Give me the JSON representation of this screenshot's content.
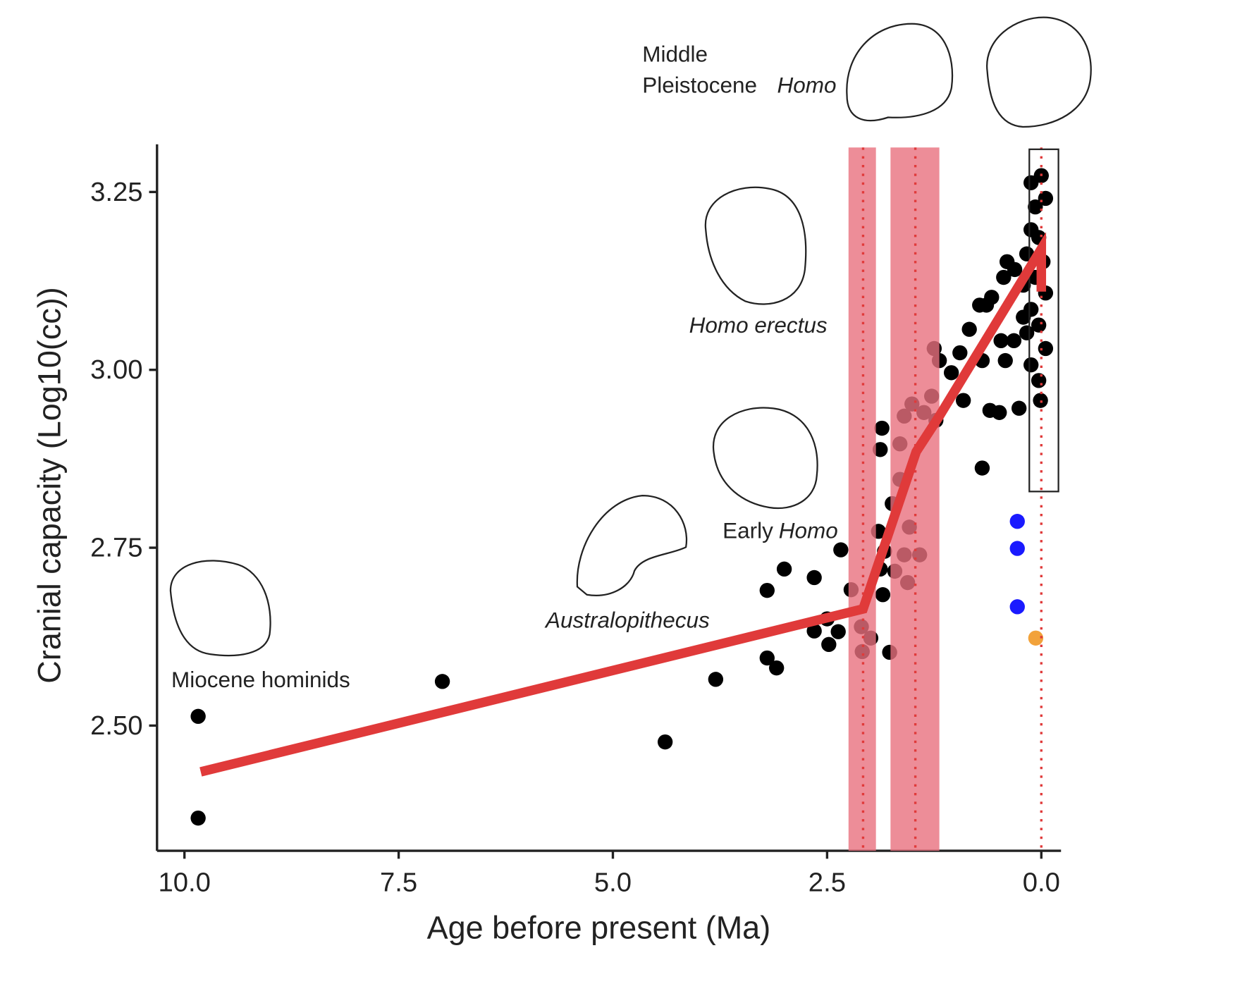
{
  "chart_data": {
    "type": "scatter",
    "x_label": "Age before present (Ma)",
    "y_label": "Cranial capacity (Log10(cc))",
    "xlim": [
      10.32,
      -0.23
    ],
    "ylim": [
      2.324,
      3.317
    ],
    "xticks": [
      {
        "value": 10,
        "label": "10.0"
      },
      7.5,
      {
        "value": 5,
        "label": "5.0"
      },
      2.5,
      {
        "value": 0,
        "label": "0.0"
      }
    ],
    "yticks": [
      {
        "value": 2.5,
        "label": "2.50"
      },
      2.75,
      {
        "value": 3,
        "label": "3.00"
      },
      3.25
    ],
    "annotations": [
      "Miocene hominids",
      "Australopithecus",
      "Early",
      "Homo",
      "Homo erectus",
      "Middle",
      "Pleistocene",
      "Homo"
    ],
    "series": [
      {
        "color": "#000000",
        "x": [
          9.84,
          9.84,
          6.99,
          4.39,
          3.8,
          3.2,
          3.0,
          3.2,
          3.09,
          2.65,
          2.34,
          2.65,
          2.5,
          2.48,
          2.37,
          2.22,
          2.09,
          2.1,
          1.99,
          1.86,
          1.88,
          1.77,
          1.85,
          1.88,
          1.83,
          1.9,
          1.74,
          1.65,
          1.71,
          1.6,
          1.56,
          1.54,
          1.42,
          1.65,
          1.6,
          1.51,
          1.37,
          1.28,
          1.25,
          1.19,
          1.23,
          1.05,
          0.95,
          0.91,
          0.84,
          0.72,
          0.69,
          0.69,
          0.58,
          0.6,
          0.49,
          0.42,
          0.47,
          0.4,
          0.26,
          0.44,
          0.64,
          0.12,
          0.0,
          0.07,
          -0.05,
          0.12,
          0.03,
          0.17,
          -0.02,
          0.07,
          0.21,
          -0.05,
          0.12,
          0.03,
          0.17,
          -0.05,
          0.12,
          0.03,
          0.01,
          0.21,
          0.31,
          0.32
        ],
        "y": [
          2.513,
          2.37,
          2.562,
          2.477,
          2.565,
          2.69,
          2.72,
          2.595,
          2.581,
          2.708,
          2.747,
          2.633,
          2.65,
          2.614,
          2.632,
          2.691,
          2.604,
          2.639,
          2.623,
          2.918,
          2.888,
          2.603,
          2.684,
          2.72,
          2.745,
          2.773,
          2.812,
          2.846,
          2.717,
          2.74,
          2.701,
          2.779,
          2.74,
          2.896,
          2.935,
          2.952,
          2.94,
          2.963,
          3.03,
          3.013,
          2.929,
          2.996,
          3.024,
          2.957,
          3.057,
          3.091,
          3.013,
          2.862,
          3.102,
          2.943,
          2.94,
          3.013,
          3.041,
          3.152,
          2.946,
          3.13,
          3.091,
          3.263,
          3.273,
          3.229,
          3.241,
          3.197,
          3.186,
          3.163,
          3.152,
          3.13,
          3.119,
          3.108,
          3.085,
          3.063,
          3.052,
          3.03,
          3.007,
          2.985,
          2.957,
          3.074,
          3.141,
          3.041
        ]
      },
      {
        "color": "#1a1aff",
        "x": [
          0.28,
          0.28,
          0.28
        ],
        "y": [
          2.787,
          2.749,
          2.667
        ]
      },
      {
        "color": "#f2a23a",
        "x": [
          0.065
        ],
        "y": [
          2.623
        ]
      }
    ],
    "fit": {
      "color": "#e03a3a",
      "x": [
        9.81,
        2.08,
        1.46,
        1.19,
        0.0,
        0.0
      ],
      "y": [
        2.435,
        2.664,
        2.885,
        2.935,
        3.17,
        3.11
      ]
    },
    "bands": {
      "color": "#e8707e",
      "x": [
        [
          2.25,
          1.93
        ],
        [
          1.76,
          1.19
        ]
      ]
    },
    "vlines": {
      "color": "#e03a3a",
      "x": [
        2.08,
        1.47,
        0.0
      ]
    },
    "highlight_box": {
      "x": [
        0.14,
        -0.2
      ],
      "y": [
        2.829,
        3.31
      ]
    }
  }
}
